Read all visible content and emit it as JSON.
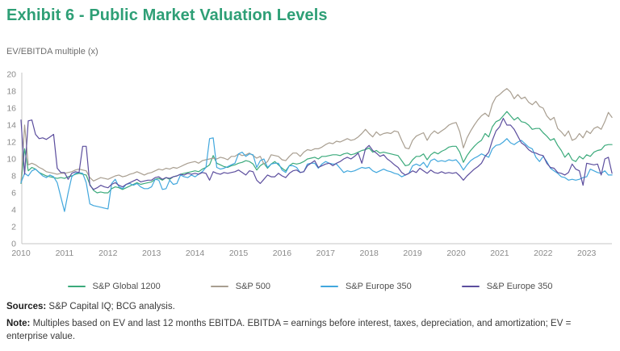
{
  "title": "Exhibit 6 - Public Market Valuation Levels",
  "axis_unit_label": "EV/EBITDA multiple (x)",
  "footer": {
    "sources_label": "Sources:",
    "sources_text": " S&P Capital IQ; BCG analysis.",
    "note_label": "Note:",
    "note_text": " Multiples based on EV and last 12 months EBITDA. EBITDA = earnings before interest, taxes, depreciation, and amortization; EV = enterprise value."
  },
  "chart_data": {
    "type": "line",
    "title": "Exhibit 6 - Public Market Valuation Levels",
    "xlabel": "",
    "ylabel": "EV/EBITDA multiple (x)",
    "ylim": [
      0,
      20
    ],
    "ytick_step": 2,
    "grid": false,
    "legend_position": "bottom",
    "x_start": "2010-01",
    "x_frequency": "monthly",
    "xticks": [
      2010,
      2011,
      2012,
      2013,
      2014,
      2015,
      2016,
      2017,
      2018,
      2019,
      2020,
      2021,
      2022,
      2023
    ],
    "series": [
      {
        "name": "S&P Global 1200",
        "color": "#3baa7b",
        "values": [
          7.1,
          11.2,
          8.6,
          9.0,
          8.8,
          8.4,
          8.2,
          8.0,
          7.9,
          7.8,
          7.7,
          7.8,
          7.7,
          7.9,
          8.0,
          8.2,
          8.3,
          8.2,
          8.1,
          7.0,
          6.3,
          6.0,
          6.1,
          6.0,
          6.0,
          6.5,
          6.7,
          6.6,
          6.4,
          6.6,
          6.8,
          7.0,
          7.2,
          7.0,
          7.1,
          7.2,
          7.3,
          7.6,
          7.7,
          7.5,
          7.8,
          7.6,
          7.9,
          8.0,
          8.2,
          8.3,
          8.4,
          8.5,
          8.6,
          8.5,
          8.8,
          9.0,
          9.3,
          10.4,
          9.5,
          9.3,
          9.1,
          9.0,
          9.2,
          9.3,
          9.5,
          9.6,
          9.8,
          9.7,
          9.4,
          8.7,
          9.2,
          9.5,
          8.9,
          9.4,
          9.7,
          9.3,
          8.9,
          8.6,
          9.2,
          9.5,
          9.4,
          9.5,
          9.7,
          10.0,
          10.1,
          10.2,
          10.0,
          10.3,
          10.3,
          10.4,
          10.5,
          10.5,
          10.4,
          10.6,
          10.7,
          10.5,
          10.6,
          10.8,
          11.0,
          11.1,
          11.3,
          10.8,
          11.0,
          10.7,
          10.8,
          10.7,
          10.6,
          10.5,
          10.4,
          9.8,
          9.2,
          9.3,
          9.9,
          10.3,
          10.3,
          10.6,
          9.9,
          10.5,
          10.8,
          10.6,
          10.9,
          11.1,
          11.4,
          11.5,
          11.5,
          10.8,
          9.6,
          10.4,
          11.0,
          11.5,
          11.9,
          12.2,
          13.0,
          12.6,
          13.8,
          14.4,
          14.6,
          15.1,
          15.6,
          15.1,
          14.6,
          14.9,
          14.4,
          14.3,
          14.0,
          13.5,
          13.6,
          13.6,
          13.1,
          12.7,
          12.2,
          12.4,
          11.6,
          11.0,
          10.2,
          10.7,
          9.9,
          9.7,
          10.3,
          10.0,
          10.5,
          10.3,
          10.8,
          11.0,
          11.1,
          11.6,
          11.7,
          11.7
        ]
      },
      {
        "name": "S&P 500",
        "color": "#a89e90",
        "values": [
          7.2,
          14.0,
          9.3,
          9.5,
          9.3,
          9.0,
          8.8,
          8.5,
          8.4,
          8.3,
          8.2,
          8.3,
          8.3,
          8.4,
          8.5,
          8.7,
          8.8,
          8.7,
          8.6,
          7.8,
          7.4,
          7.6,
          7.8,
          7.7,
          7.6,
          7.8,
          8.0,
          8.1,
          7.9,
          8.0,
          8.2,
          8.3,
          8.5,
          8.3,
          8.1,
          8.3,
          8.4,
          8.6,
          8.8,
          8.7,
          8.9,
          8.8,
          9.0,
          8.9,
          9.1,
          9.3,
          9.5,
          9.6,
          9.7,
          9.5,
          9.8,
          9.9,
          10.0,
          10.1,
          10.0,
          10.2,
          10.1,
          9.9,
          10.3,
          10.3,
          10.6,
          10.4,
          10.5,
          10.7,
          10.4,
          10.1,
          10.3,
          9.4,
          9.7,
          10.5,
          10.4,
          10.3,
          9.9,
          9.8,
          10.3,
          10.7,
          10.7,
          10.3,
          10.8,
          11.1,
          11.0,
          11.2,
          11.2,
          11.4,
          11.7,
          11.9,
          11.8,
          12.1,
          12.0,
          12.2,
          12.4,
          12.2,
          12.3,
          12.6,
          13.0,
          13.5,
          13.0,
          12.6,
          13.2,
          12.8,
          13.0,
          13.1,
          13.0,
          13.3,
          13.2,
          12.2,
          11.3,
          11.2,
          12.2,
          12.7,
          12.9,
          13.1,
          12.2,
          12.9,
          13.3,
          13.0,
          13.3,
          13.6,
          14.0,
          14.2,
          14.3,
          13.2,
          11.3,
          12.5,
          13.3,
          14.0,
          14.6,
          15.1,
          15.4,
          15.0,
          16.5,
          17.3,
          17.6,
          18.0,
          18.3,
          17.9,
          17.1,
          17.6,
          17.1,
          17.3,
          16.7,
          16.4,
          16.8,
          16.2,
          16.0,
          15.1,
          14.6,
          14.9,
          13.6,
          13.2,
          12.7,
          13.3,
          12.2,
          12.4,
          13.0,
          12.5,
          13.3,
          13.0,
          13.6,
          13.8,
          13.5,
          14.4,
          15.5,
          14.9
        ]
      },
      {
        "name": "S&P Europe 350",
        "color": "#41a7dd",
        "values": [
          7.2,
          8.3,
          8.0,
          8.6,
          8.8,
          8.4,
          8.0,
          7.8,
          8.1,
          7.9,
          7.2,
          5.5,
          3.8,
          6.0,
          7.9,
          8.3,
          8.4,
          8.3,
          7.2,
          4.7,
          4.5,
          4.4,
          4.3,
          4.2,
          4.1,
          7.1,
          7.6,
          6.7,
          6.5,
          7.0,
          7.1,
          6.9,
          7.1,
          6.7,
          6.5,
          6.5,
          6.7,
          7.6,
          7.5,
          6.4,
          6.5,
          7.5,
          7.0,
          7.1,
          8.1,
          7.9,
          7.8,
          8.1,
          7.9,
          8.2,
          8.5,
          9.0,
          12.4,
          12.5,
          9.0,
          8.8,
          8.9,
          9.1,
          9.3,
          9.5,
          10.6,
          10.8,
          10.3,
          10.6,
          10.5,
          9.0,
          9.8,
          10.0,
          9.0,
          9.4,
          9.5,
          9.5,
          8.7,
          8.4,
          9.2,
          9.2,
          9.0,
          8.4,
          8.5,
          9.4,
          9.5,
          9.5,
          8.9,
          9.4,
          9.7,
          9.5,
          9.4,
          9.4,
          8.9,
          8.4,
          8.6,
          8.5,
          8.6,
          8.8,
          9.0,
          8.9,
          9.0,
          8.6,
          8.4,
          8.6,
          8.8,
          8.6,
          8.5,
          8.3,
          8.2,
          7.9,
          8.1,
          8.3,
          9.2,
          9.4,
          9.2,
          9.6,
          9.0,
          9.8,
          10.0,
          9.7,
          9.8,
          9.7,
          9.9,
          9.8,
          9.9,
          9.4,
          8.7,
          9.3,
          9.8,
          10.1,
          10.3,
          10.6,
          10.4,
          10.2,
          11.2,
          11.6,
          11.7,
          12.0,
          12.4,
          11.9,
          11.7,
          12.0,
          12.2,
          11.8,
          11.4,
          11.2,
          10.2,
          9.7,
          10.3,
          9.7,
          8.9,
          8.6,
          8.3,
          7.9,
          7.8,
          7.5,
          7.6,
          7.5,
          7.6,
          7.8,
          7.9,
          8.8,
          8.6,
          8.4,
          8.3,
          8.6,
          8.1,
          8.1
        ]
      },
      {
        "name": "S&P Europe 350",
        "color": "#5c4e9e",
        "values": [
          14.6,
          8.2,
          14.5,
          14.6,
          12.9,
          12.4,
          12.5,
          12.3,
          12.6,
          12.9,
          8.9,
          8.4,
          8.4,
          7.6,
          8.3,
          8.5,
          8.4,
          11.5,
          11.5,
          6.9,
          6.4,
          6.6,
          6.9,
          6.7,
          6.6,
          7.0,
          7.2,
          6.9,
          6.7,
          7.0,
          7.2,
          7.4,
          7.6,
          7.3,
          7.4,
          7.5,
          7.5,
          7.8,
          7.9,
          7.6,
          7.8,
          7.7,
          7.9,
          8.0,
          8.2,
          8.1,
          8.3,
          8.2,
          8.3,
          8.2,
          8.4,
          8.3,
          7.5,
          8.5,
          8.3,
          8.2,
          8.4,
          8.3,
          8.4,
          8.5,
          8.7,
          8.4,
          8.1,
          8.6,
          8.5,
          7.5,
          7.1,
          7.6,
          8.1,
          7.9,
          7.9,
          8.3,
          8.0,
          7.8,
          8.3,
          8.6,
          8.7,
          8.4,
          8.5,
          9.2,
          9.5,
          9.8,
          9.0,
          9.2,
          9.4,
          9.5,
          9.2,
          9.5,
          9.7,
          10.0,
          10.2,
          10.0,
          10.3,
          10.7,
          9.5,
          11.2,
          11.6,
          11.0,
          10.7,
          10.3,
          10.5,
          10.0,
          9.7,
          9.3,
          9.0,
          8.4,
          8.1,
          8.3,
          8.6,
          8.4,
          8.9,
          8.6,
          8.3,
          8.7,
          8.4,
          8.3,
          8.5,
          8.3,
          8.4,
          8.3,
          8.4,
          8.0,
          7.5,
          8.0,
          8.4,
          8.8,
          9.1,
          9.5,
          10.3,
          10.8,
          12.2,
          13.3,
          13.8,
          14.8,
          14.0,
          14.0,
          13.5,
          12.7,
          11.9,
          11.6,
          11.1,
          10.8,
          10.7,
          10.5,
          10.4,
          9.5,
          9.0,
          8.9,
          8.4,
          8.3,
          8.1,
          8.4,
          9.4,
          8.8,
          8.6,
          6.9,
          9.5,
          9.4,
          9.3,
          9.4,
          8.1,
          10.0,
          10.2,
          8.3
        ]
      }
    ]
  }
}
